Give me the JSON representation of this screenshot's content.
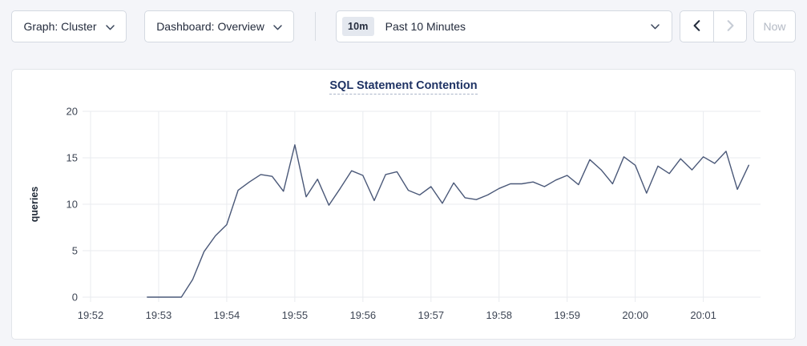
{
  "toolbar": {
    "graph_dropdown": {
      "label": "Graph: Cluster"
    },
    "dashboard_dropdown": {
      "label": "Dashboard: Overview"
    },
    "time_window": {
      "badge": "10m",
      "label": "Past 10 Minutes"
    },
    "now_button": {
      "label": "Now"
    }
  },
  "colors": {
    "page_bg": "#f4f5f9",
    "card_bg": "#ffffff",
    "card_border": "#e2e5ea",
    "button_border": "#d4d9e1",
    "button_text": "#242c3d",
    "badge_bg": "#e4e8ef",
    "title_text": "#1f3364",
    "disabled_text": "#b3b9c4",
    "arrow_enabled": "#232c3c",
    "arrow_disabled": "#c6ccd5"
  },
  "chart_data": {
    "type": "line",
    "title": "SQL Statement Contention",
    "ylabel": "queries",
    "ylim": [
      0,
      20
    ],
    "yticks": [
      0,
      5,
      10,
      15,
      20
    ],
    "xticks": [
      "19:52",
      "19:53",
      "19:54",
      "19:55",
      "19:56",
      "19:57",
      "19:58",
      "19:59",
      "20:00",
      "20:01"
    ],
    "x_span_min": 9.84,
    "x_start_min": 0.8333,
    "x_step_min": 0.16667,
    "grid_on": true,
    "legend": "none",
    "grid_color": "#e9ebef",
    "tick_color": "#3d4554",
    "axis_label_color": "#202a38",
    "series": [
      {
        "name": "queries",
        "color": "#4a5878",
        "start_time": "19:52:50",
        "interval_seconds": 10,
        "values": [
          0,
          0,
          0,
          0,
          1.9,
          4.9,
          6.6,
          7.8,
          11.5,
          12.4,
          13.2,
          13.0,
          11.4,
          16.4,
          10.8,
          12.7,
          9.9,
          11.7,
          13.6,
          13.1,
          10.4,
          13.2,
          13.5,
          11.5,
          11.0,
          11.9,
          10.1,
          12.3,
          10.7,
          10.5,
          11.0,
          11.7,
          12.2,
          12.2,
          12.4,
          11.9,
          12.6,
          13.1,
          12.1,
          14.8,
          13.7,
          12.2,
          15.1,
          14.2,
          11.2,
          14.1,
          13.3,
          14.9,
          13.7,
          15.1,
          14.4,
          15.7,
          11.6,
          14.2
        ]
      }
    ]
  }
}
